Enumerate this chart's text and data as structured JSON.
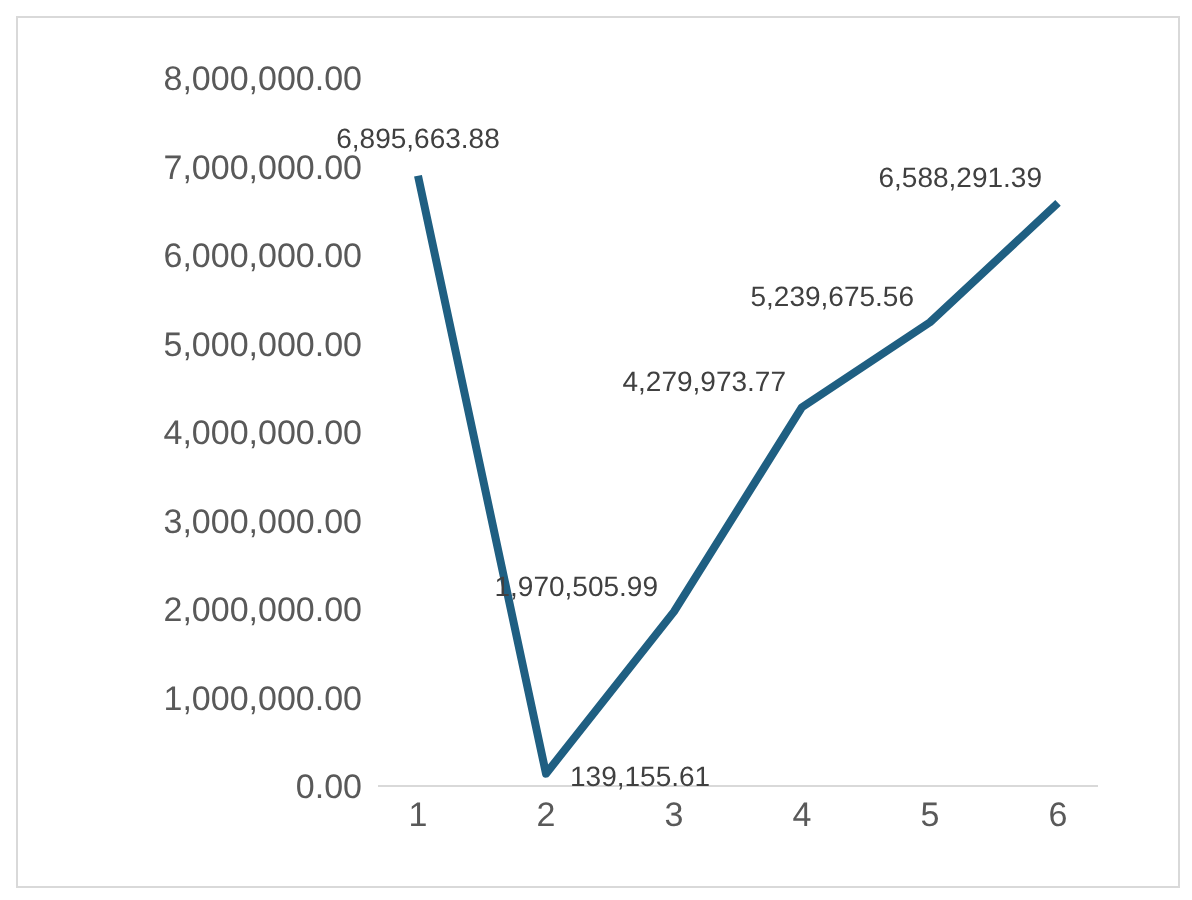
{
  "chart_data": {
    "type": "line",
    "categories": [
      "1",
      "2",
      "3",
      "4",
      "5",
      "6"
    ],
    "series": [
      {
        "color": "#1f5f82",
        "values": [
          6895663.88,
          139155.61,
          1970505.99,
          4279973.77,
          5239675.56,
          6588291.39
        ],
        "value_labels": [
          "6,895,663.88",
          "139,155.61",
          "1,970,505.99",
          "4,279,973.77",
          "5,239,675.56",
          "6,588,291.39"
        ]
      }
    ],
    "ylim": [
      0,
      8000000
    ],
    "yticks": [
      {
        "value": 0,
        "label": "0.00"
      },
      {
        "value": 1000000,
        "label": "1,000,000.00"
      },
      {
        "value": 2000000,
        "label": "2,000,000.00"
      },
      {
        "value": 3000000,
        "label": "3,000,000.00"
      },
      {
        "value": 4000000,
        "label": "4,000,000.00"
      },
      {
        "value": 5000000,
        "label": "5,000,000.00"
      },
      {
        "value": 6000000,
        "label": "6,000,000.00"
      },
      {
        "value": 7000000,
        "label": "7,000,000.00"
      },
      {
        "value": 8000000,
        "label": "8,000,000.00"
      }
    ],
    "grid": false,
    "legend": false,
    "marker": "none",
    "line_style": "solid"
  }
}
